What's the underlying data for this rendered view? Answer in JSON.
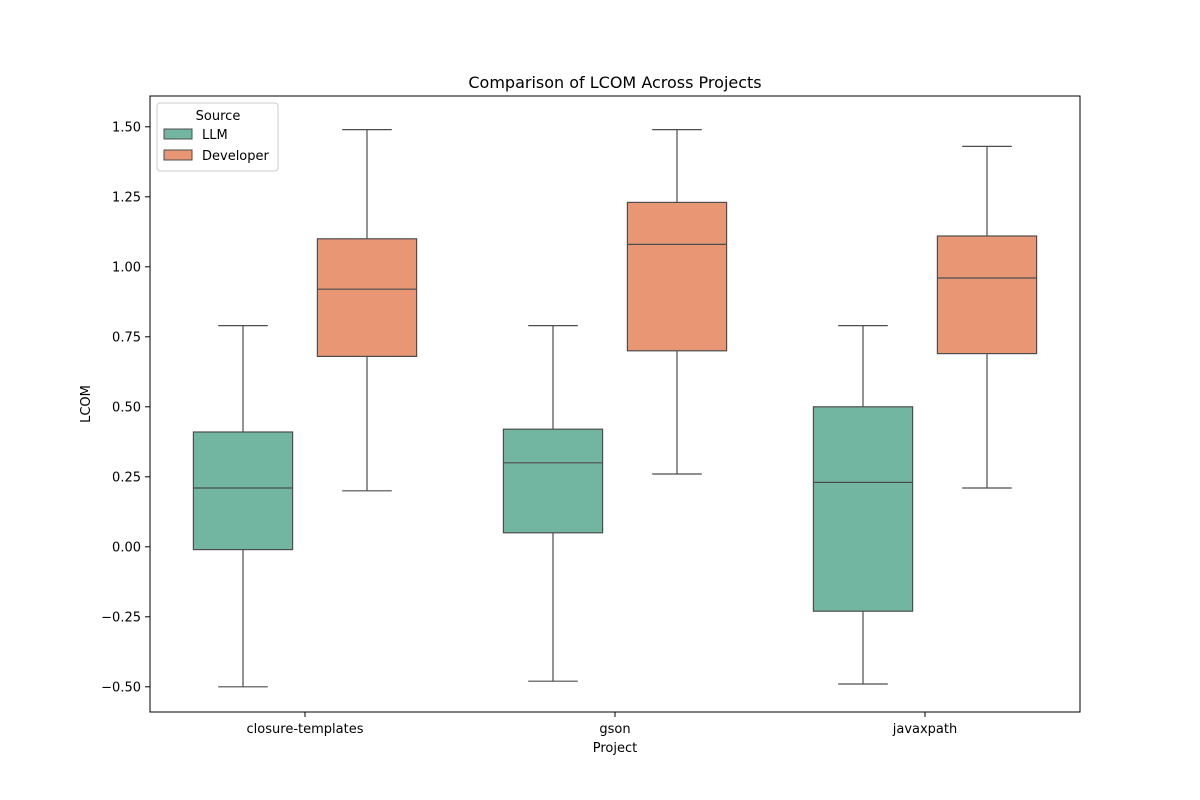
{
  "chart_data": {
    "type": "box",
    "title": "Comparison of LCOM Across Projects",
    "xlabel": "Project",
    "ylabel": "LCOM",
    "categories": [
      "closure-templates",
      "gson",
      "javaxpath"
    ],
    "ylim": [
      -0.59,
      1.61
    ],
    "yticks": [
      -0.5,
      -0.25,
      0.0,
      0.25,
      0.5,
      0.75,
      1.0,
      1.25,
      1.5
    ],
    "ytick_labels": [
      "−0.50",
      "−0.25",
      "0.00",
      "0.25",
      "0.50",
      "0.75",
      "1.00",
      "1.25",
      "1.50"
    ],
    "grid": false,
    "legend": {
      "title": "Source",
      "position": "top-left"
    },
    "series": [
      {
        "name": "LLM",
        "color": "#72b6a1",
        "boxes": [
          {
            "whisker_low": -0.5,
            "q1": -0.01,
            "median": 0.21,
            "q3": 0.41,
            "whisker_high": 0.79
          },
          {
            "whisker_low": -0.48,
            "q1": 0.05,
            "median": 0.3,
            "q3": 0.42,
            "whisker_high": 0.79
          },
          {
            "whisker_low": -0.49,
            "q1": -0.23,
            "median": 0.23,
            "q3": 0.5,
            "whisker_high": 0.79
          }
        ]
      },
      {
        "name": "Developer",
        "color": "#e99675",
        "boxes": [
          {
            "whisker_low": 0.2,
            "q1": 0.68,
            "median": 0.92,
            "q3": 1.1,
            "whisker_high": 1.49
          },
          {
            "whisker_low": 0.26,
            "q1": 0.7,
            "median": 1.08,
            "q3": 1.23,
            "whisker_high": 1.49
          },
          {
            "whisker_low": 0.21,
            "q1": 0.69,
            "median": 0.96,
            "q3": 1.11,
            "whisker_high": 1.43
          }
        ]
      }
    ]
  }
}
